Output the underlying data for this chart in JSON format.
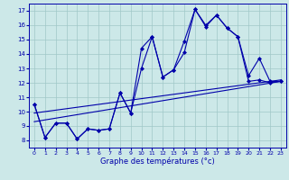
{
  "title": "Graphe des températures (°c)",
  "bg_color": "#cce8e8",
  "line_color": "#0000aa",
  "x_hours": [
    0,
    1,
    2,
    3,
    4,
    5,
    6,
    7,
    8,
    9,
    10,
    11,
    12,
    13,
    14,
    15,
    16,
    17,
    18,
    19,
    20,
    21,
    22,
    23
  ],
  "temp_line1": [
    10.5,
    8.2,
    9.2,
    9.2,
    8.1,
    8.8,
    8.7,
    8.8,
    11.3,
    9.9,
    14.4,
    15.2,
    12.4,
    12.9,
    14.1,
    17.1,
    15.9,
    16.7,
    15.8,
    15.2,
    12.1,
    12.2,
    12.0,
    12.1
  ],
  "temp_line2": [
    10.5,
    8.2,
    9.2,
    9.2,
    8.1,
    8.8,
    8.7,
    8.8,
    11.3,
    9.9,
    13.0,
    15.2,
    12.4,
    12.9,
    14.9,
    17.1,
    16.0,
    16.7,
    15.8,
    15.2,
    12.5,
    13.7,
    12.1,
    12.1
  ],
  "trend1_x": [
    0,
    23
  ],
  "trend1_y": [
    9.9,
    12.2
  ],
  "trend2_x": [
    0,
    23
  ],
  "trend2_y": [
    9.3,
    12.1
  ],
  "ylim": [
    7.5,
    17.5
  ],
  "yticks": [
    8,
    9,
    10,
    11,
    12,
    13,
    14,
    15,
    16,
    17
  ],
  "xticks": [
    0,
    1,
    2,
    3,
    4,
    5,
    6,
    7,
    8,
    9,
    10,
    11,
    12,
    13,
    14,
    15,
    16,
    17,
    18,
    19,
    20,
    21,
    22,
    23
  ],
  "grid_color": "#a0c8c8",
  "marker": "D",
  "markersize": 2.0,
  "linewidth": 0.8,
  "tick_fontsize": 5,
  "xlabel_fontsize": 6
}
